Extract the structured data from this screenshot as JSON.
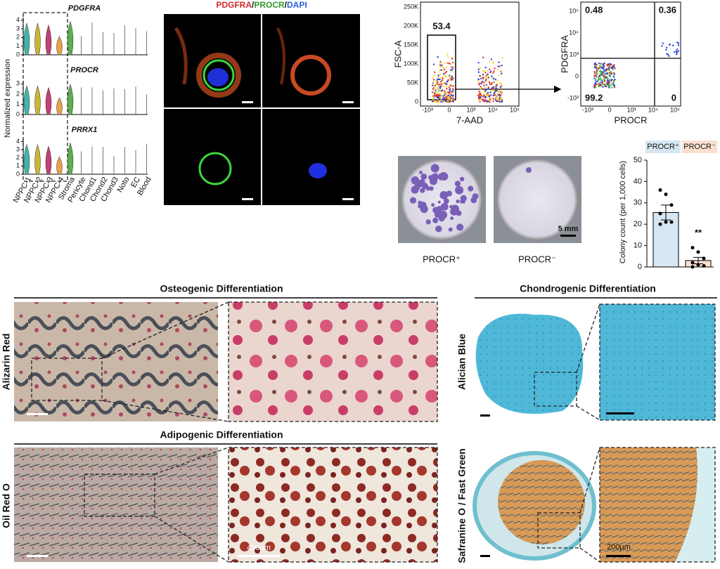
{
  "violin": {
    "ylabel": "Normalized expression",
    "genes": [
      {
        "name": "PDGFRA",
        "yticks": [
          0,
          1,
          2,
          3,
          4
        ],
        "ylim": [
          0,
          4.3
        ]
      },
      {
        "name": "PROCR",
        "yticks": [
          0,
          1,
          2,
          3
        ],
        "ylim": [
          0,
          3.3
        ]
      },
      {
        "name": "PRRX1",
        "yticks": [
          0,
          1,
          2,
          3,
          4
        ],
        "ylim": [
          0,
          4.3
        ]
      }
    ],
    "categories": [
      "NPPC-1",
      "NPPC-2",
      "NPPC-3",
      "NPPC-4",
      "Stroma",
      "Pericyte",
      "Chond1",
      "Chond2",
      "Chond3",
      "Noto",
      "EC",
      "Blood"
    ]
  },
  "immunofluorescence": {
    "title": [
      "PDGFRA",
      "/",
      "PROCR",
      "/",
      "DAPI"
    ]
  },
  "flow": {
    "left": {
      "ylabel": "FSC-A",
      "xlabel": "7-AAD",
      "gate": "53.4",
      "yticks": [
        "0",
        "50K",
        "100K",
        "150K",
        "200K",
        "250K"
      ],
      "xticks": [
        "-10³",
        "0",
        "10³",
        "10⁴",
        "10⁵"
      ]
    },
    "right": {
      "ylabel": "PDGFRA",
      "xlabel": "PROCR",
      "quadrants": [
        "0.48",
        "0.36",
        "99.2",
        "0"
      ],
      "yticks": [
        "-10³",
        "0",
        "10³",
        "10⁴",
        "10⁵"
      ],
      "xticks": [
        "-10³",
        "0",
        "10³",
        "10⁴",
        "10⁵"
      ]
    }
  },
  "colony": {
    "labels": [
      "PROCR⁺",
      "PROCR⁻"
    ],
    "scale": "5 mm"
  },
  "colony_chart": {
    "type": "bar",
    "ylabel": "Colony count (per 1,000 cells)",
    "categories": [
      "PROCR⁺",
      "PROCR⁻"
    ],
    "colors": [
      "#d6e6f2",
      "#fbe0cf"
    ],
    "values": [
      25.5,
      3
    ],
    "errors": [
      3.5,
      1.5
    ],
    "points": [
      [
        36,
        34,
        29,
        25,
        21,
        21,
        20
      ],
      [
        9,
        7,
        4,
        2,
        1,
        0.5,
        0
      ]
    ],
    "significance": "**",
    "ylim": [
      0,
      50
    ],
    "yticks": [
      0,
      10,
      20,
      30,
      40,
      50
    ]
  },
  "osteogenic": {
    "title": "Osteogenic Differentiation",
    "stain": "Alizarin Red"
  },
  "adipogenic": {
    "title": "Adipogenic Differentiation",
    "stain": "Oil Red O",
    "scale": "400μm"
  },
  "chondrogenic": {
    "title": "Chondrogenic Differentiation",
    "stains": [
      "Alician Blue",
      "Safranine O / Fast Green"
    ],
    "scale": "200μm"
  }
}
